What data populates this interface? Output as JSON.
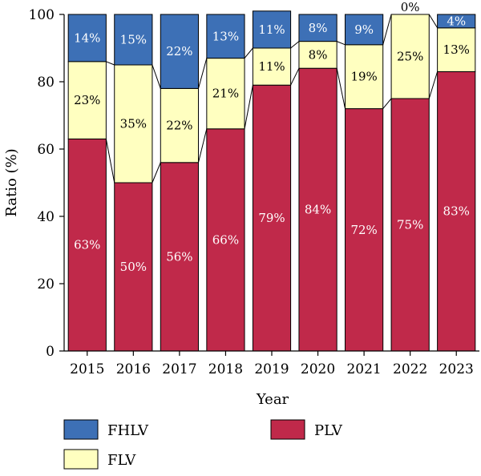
{
  "chart_data": {
    "type": "bar",
    "stacked": true,
    "xlabel": "Year",
    "ylabel": "Ratio (%)",
    "ylim": [
      0,
      100
    ],
    "yticks": [
      0,
      20,
      40,
      60,
      80,
      100
    ],
    "categories": [
      "2015",
      "2016",
      "2017",
      "2018",
      "2019",
      "2020",
      "2021",
      "2022",
      "2023"
    ],
    "series": [
      {
        "name": "PLV",
        "color": "#c0294a",
        "label_color": "#ffffff",
        "values": [
          63,
          50,
          56,
          66,
          79,
          84,
          72,
          75,
          83
        ],
        "labels": [
          "63%",
          "50%",
          "56%",
          "66%",
          "79%",
          "84%",
          "72%",
          "75%",
          "83%"
        ]
      },
      {
        "name": "FLV",
        "color": "#ffffc0",
        "label_color": "#000000",
        "values": [
          23,
          35,
          22,
          21,
          11,
          8,
          19,
          25,
          13
        ],
        "labels": [
          "23%",
          "35%",
          "22%",
          "21%",
          "11%",
          "8%",
          "19%",
          "25%",
          "13%"
        ]
      },
      {
        "name": "FHLV",
        "color": "#3d70b6",
        "label_color": "#ffffff",
        "values": [
          14,
          15,
          22,
          13,
          11,
          8,
          9,
          0,
          4
        ],
        "labels": [
          "14%",
          "15%",
          "22%",
          "13%",
          "11%",
          "8%",
          "9%",
          "0%",
          "4%"
        ]
      }
    ],
    "legend": {
      "placement": "bottom",
      "entries": [
        {
          "name": "FHLV",
          "color": "#3d70b6"
        },
        {
          "name": "PLV",
          "color": "#c0294a"
        },
        {
          "name": "FLV",
          "color": "#ffffc0"
        }
      ]
    },
    "grid": false
  }
}
